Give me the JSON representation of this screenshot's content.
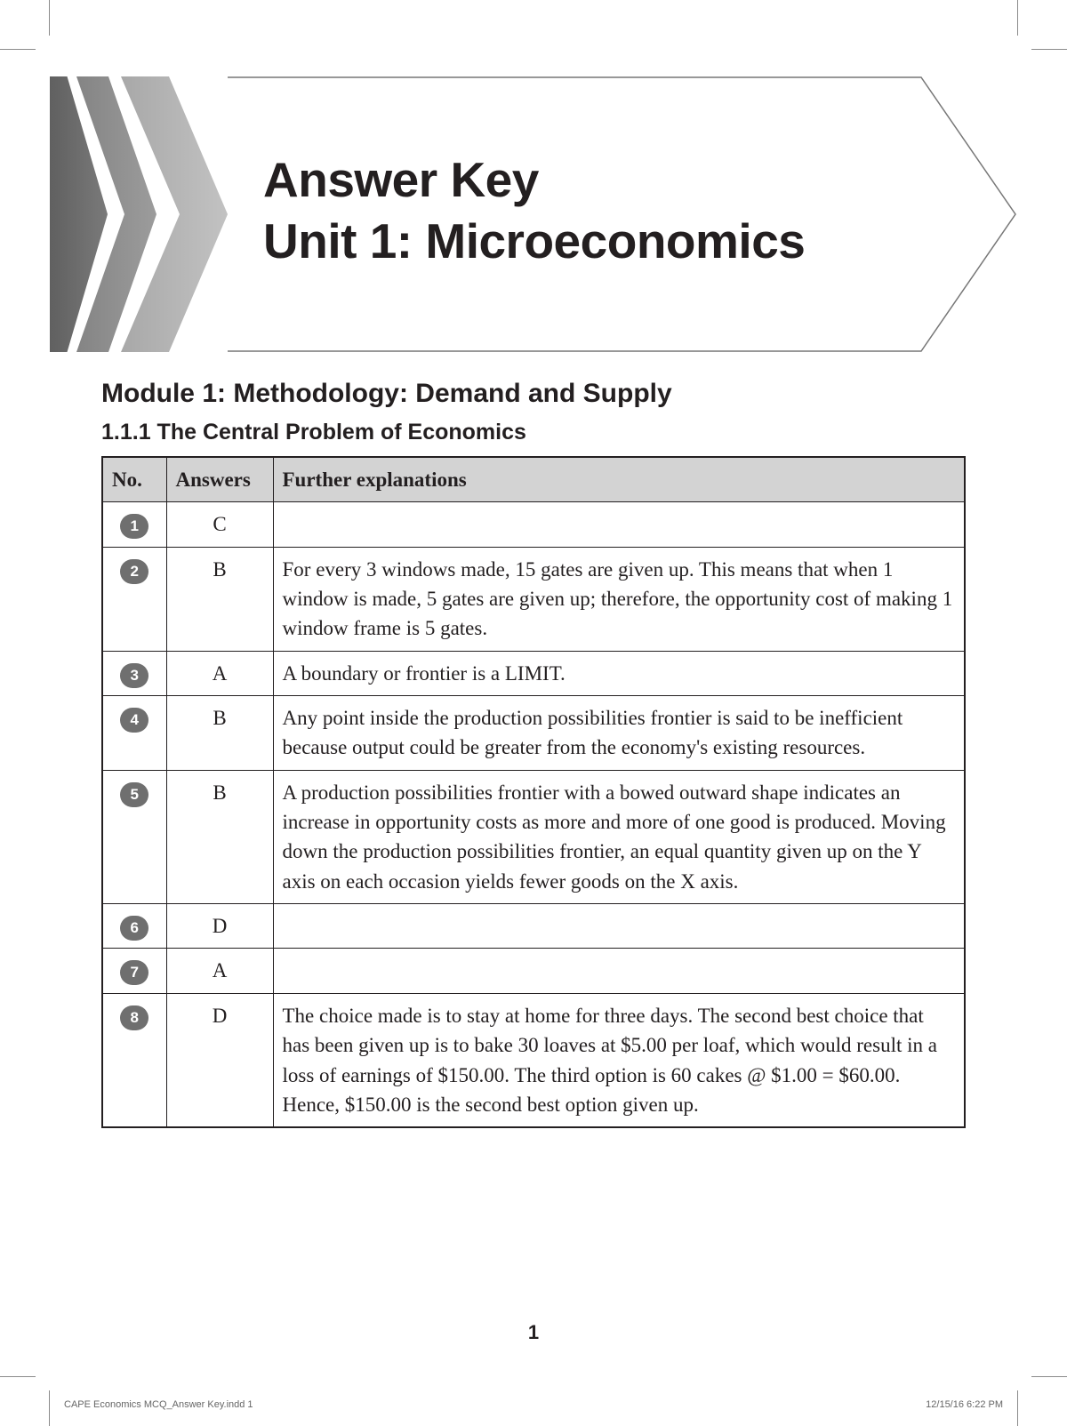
{
  "title": {
    "line1": "Answer Key",
    "line2": "Unit 1: Microeconomics"
  },
  "module_heading": "Module 1: Methodology: Demand and Supply",
  "section_heading": "1.1.1 The Central Problem of Economics",
  "table": {
    "columns": [
      "No.",
      "Answers",
      "Further explanations"
    ],
    "header_bg": "#d3d3d3",
    "border_color": "#231f20",
    "body_font_size": 23,
    "rows": [
      {
        "no": "1",
        "answer": "C",
        "explanation": ""
      },
      {
        "no": "2",
        "answer": "B",
        "explanation": "For every 3 windows made, 15 gates are given up. This means that when 1 window is made, 5 gates are given up; therefore, the opportunity cost of making 1 window frame is 5 gates."
      },
      {
        "no": "3",
        "answer": "A",
        "explanation": "A boundary or frontier is a LIMIT."
      },
      {
        "no": "4",
        "answer": "B",
        "explanation": "Any point inside the production possibilities frontier is said to be inefficient because output could be greater from the economy's existing resources."
      },
      {
        "no": "5",
        "answer": "B",
        "explanation": "A production possibilities frontier with a bowed outward shape indicates an increase in opportunity costs as more and more of one good is produced. Moving down the production possibilities frontier, an equal quantity given up on the Y axis on each occasion yields fewer goods on the X axis."
      },
      {
        "no": "6",
        "answer": "D",
        "explanation": ""
      },
      {
        "no": "7",
        "answer": "A",
        "explanation": ""
      },
      {
        "no": "8",
        "answer": "D",
        "explanation": "The choice made is to stay at home for three days. The second best choice that has been given up is to bake 30 loaves at $5.00 per loaf, which would result in a loss of earnings of $150.00. The third option is 60 cakes @ $1.00 = $60.00. Hence, $150.00 is the second best option given up."
      }
    ]
  },
  "badge": {
    "bg": "#6f6f6f",
    "fg": "#ffffff"
  },
  "page_number": "1",
  "slug": {
    "left": "CAPE Economics MCQ_Answer Key.indd   1",
    "right": "12/15/16   6:22 PM"
  },
  "chevron_colors": [
    "#606060",
    "#9c9c9c",
    "#c2c2c2"
  ],
  "outline_stroke": "#777777"
}
